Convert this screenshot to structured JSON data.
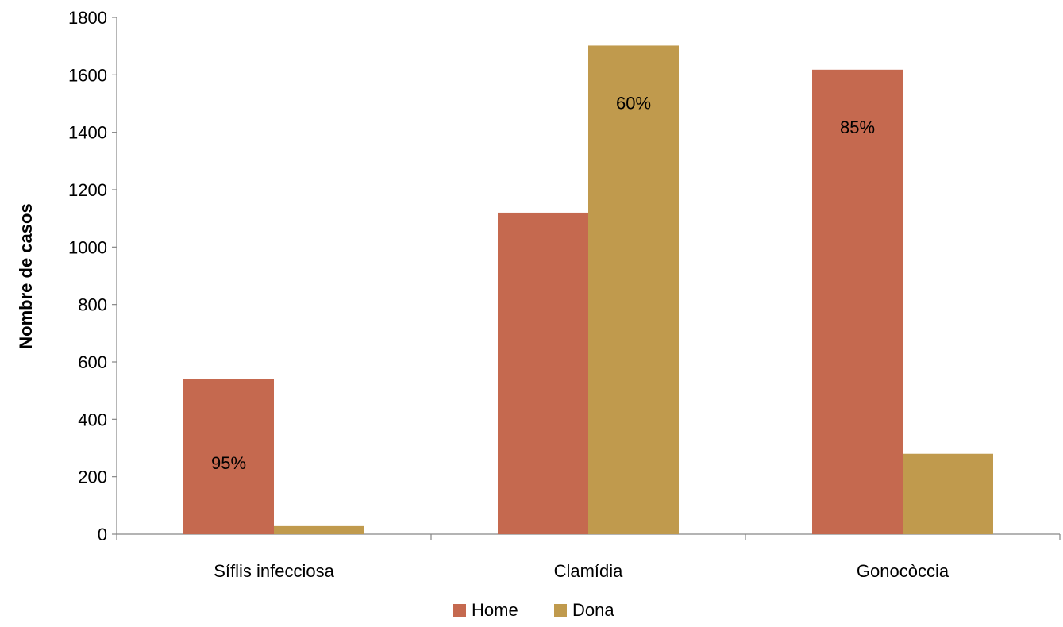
{
  "chart_data": {
    "type": "bar",
    "categories": [
      "Síflis infecciosa",
      "Clamídia",
      "Gonocòccia"
    ],
    "series": [
      {
        "name": "Home",
        "color": "#C5694F",
        "values": [
          540,
          1120,
          1618
        ]
      },
      {
        "name": "Dona",
        "color": "#C09A4D",
        "values": [
          28,
          1702,
          280
        ]
      }
    ],
    "data_labels": [
      {
        "category_index": 0,
        "series_index": 0,
        "text": "95%"
      },
      {
        "category_index": 1,
        "series_index": 1,
        "text": "60%"
      },
      {
        "category_index": 2,
        "series_index": 0,
        "text": "85%"
      }
    ],
    "title": "",
    "xlabel": "",
    "ylabel": "Nombre de casos",
    "ylim": [
      0,
      1800
    ],
    "yticks": [
      0,
      200,
      400,
      600,
      800,
      1000,
      1200,
      1400,
      1600,
      1800
    ],
    "grid": false,
    "legend_position": "bottom"
  }
}
